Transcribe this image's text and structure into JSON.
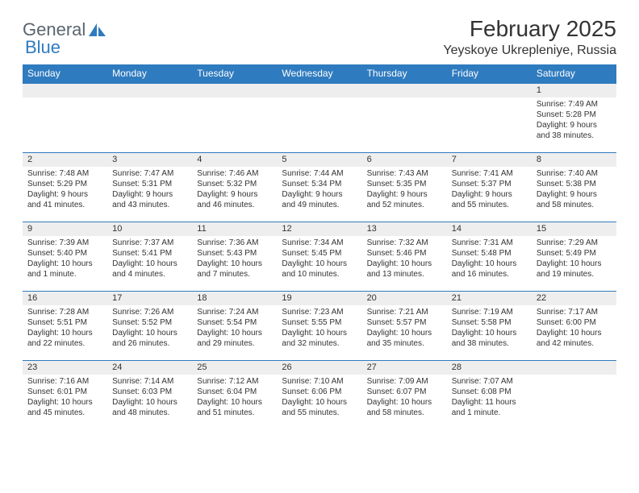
{
  "logo": {
    "word1": "General",
    "word2": "Blue"
  },
  "title": "February 2025",
  "location": "Yeyskoye Ukrepleniye, Russia",
  "colors": {
    "header_bg": "#2f7bbf",
    "header_text": "#ffffff",
    "daynum_bg": "#eeeeee",
    "border": "#2f7bbf",
    "text": "#333333",
    "logo_gray": "#5a6670",
    "logo_blue": "#2f7bbf"
  },
  "daynames": [
    "Sunday",
    "Monday",
    "Tuesday",
    "Wednesday",
    "Thursday",
    "Friday",
    "Saturday"
  ],
  "weeks": [
    [
      {},
      {},
      {},
      {},
      {},
      {},
      {
        "n": "1",
        "sunrise": "7:49 AM",
        "sunset": "5:28 PM",
        "daylight": "9 hours and 38 minutes."
      }
    ],
    [
      {
        "n": "2",
        "sunrise": "7:48 AM",
        "sunset": "5:29 PM",
        "daylight": "9 hours and 41 minutes."
      },
      {
        "n": "3",
        "sunrise": "7:47 AM",
        "sunset": "5:31 PM",
        "daylight": "9 hours and 43 minutes."
      },
      {
        "n": "4",
        "sunrise": "7:46 AM",
        "sunset": "5:32 PM",
        "daylight": "9 hours and 46 minutes."
      },
      {
        "n": "5",
        "sunrise": "7:44 AM",
        "sunset": "5:34 PM",
        "daylight": "9 hours and 49 minutes."
      },
      {
        "n": "6",
        "sunrise": "7:43 AM",
        "sunset": "5:35 PM",
        "daylight": "9 hours and 52 minutes."
      },
      {
        "n": "7",
        "sunrise": "7:41 AM",
        "sunset": "5:37 PM",
        "daylight": "9 hours and 55 minutes."
      },
      {
        "n": "8",
        "sunrise": "7:40 AM",
        "sunset": "5:38 PM",
        "daylight": "9 hours and 58 minutes."
      }
    ],
    [
      {
        "n": "9",
        "sunrise": "7:39 AM",
        "sunset": "5:40 PM",
        "daylight": "10 hours and 1 minute."
      },
      {
        "n": "10",
        "sunrise": "7:37 AM",
        "sunset": "5:41 PM",
        "daylight": "10 hours and 4 minutes."
      },
      {
        "n": "11",
        "sunrise": "7:36 AM",
        "sunset": "5:43 PM",
        "daylight": "10 hours and 7 minutes."
      },
      {
        "n": "12",
        "sunrise": "7:34 AM",
        "sunset": "5:45 PM",
        "daylight": "10 hours and 10 minutes."
      },
      {
        "n": "13",
        "sunrise": "7:32 AM",
        "sunset": "5:46 PM",
        "daylight": "10 hours and 13 minutes."
      },
      {
        "n": "14",
        "sunrise": "7:31 AM",
        "sunset": "5:48 PM",
        "daylight": "10 hours and 16 minutes."
      },
      {
        "n": "15",
        "sunrise": "7:29 AM",
        "sunset": "5:49 PM",
        "daylight": "10 hours and 19 minutes."
      }
    ],
    [
      {
        "n": "16",
        "sunrise": "7:28 AM",
        "sunset": "5:51 PM",
        "daylight": "10 hours and 22 minutes."
      },
      {
        "n": "17",
        "sunrise": "7:26 AM",
        "sunset": "5:52 PM",
        "daylight": "10 hours and 26 minutes."
      },
      {
        "n": "18",
        "sunrise": "7:24 AM",
        "sunset": "5:54 PM",
        "daylight": "10 hours and 29 minutes."
      },
      {
        "n": "19",
        "sunrise": "7:23 AM",
        "sunset": "5:55 PM",
        "daylight": "10 hours and 32 minutes."
      },
      {
        "n": "20",
        "sunrise": "7:21 AM",
        "sunset": "5:57 PM",
        "daylight": "10 hours and 35 minutes."
      },
      {
        "n": "21",
        "sunrise": "7:19 AM",
        "sunset": "5:58 PM",
        "daylight": "10 hours and 38 minutes."
      },
      {
        "n": "22",
        "sunrise": "7:17 AM",
        "sunset": "6:00 PM",
        "daylight": "10 hours and 42 minutes."
      }
    ],
    [
      {
        "n": "23",
        "sunrise": "7:16 AM",
        "sunset": "6:01 PM",
        "daylight": "10 hours and 45 minutes."
      },
      {
        "n": "24",
        "sunrise": "7:14 AM",
        "sunset": "6:03 PM",
        "daylight": "10 hours and 48 minutes."
      },
      {
        "n": "25",
        "sunrise": "7:12 AM",
        "sunset": "6:04 PM",
        "daylight": "10 hours and 51 minutes."
      },
      {
        "n": "26",
        "sunrise": "7:10 AM",
        "sunset": "6:06 PM",
        "daylight": "10 hours and 55 minutes."
      },
      {
        "n": "27",
        "sunrise": "7:09 AM",
        "sunset": "6:07 PM",
        "daylight": "10 hours and 58 minutes."
      },
      {
        "n": "28",
        "sunrise": "7:07 AM",
        "sunset": "6:08 PM",
        "daylight": "11 hours and 1 minute."
      },
      {}
    ]
  ],
  "labels": {
    "sunrise": "Sunrise: ",
    "sunset": "Sunset: ",
    "daylight": "Daylight: "
  }
}
